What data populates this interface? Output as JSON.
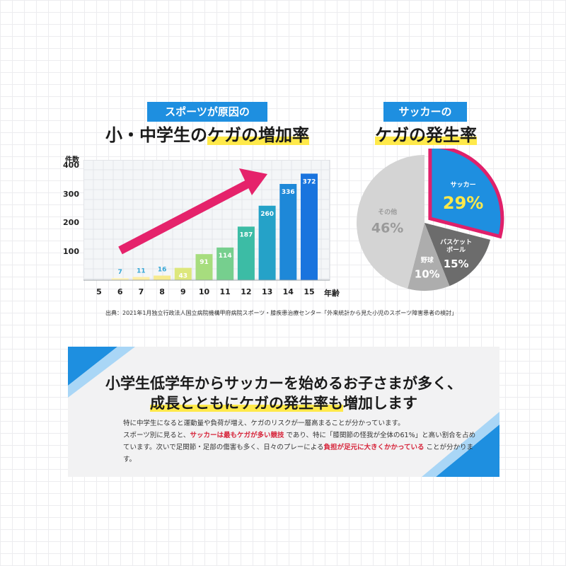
{
  "left_panel": {
    "tag": "スポーツが原因の",
    "title_plain_1": "小・中学生の",
    "title_highlight": "ケガの増加率",
    "y_unit": "件数",
    "x_unit": "年齢",
    "source": "出典：2021年1月独立行政法人国立病院機構甲府病院スポーツ・膝疾患治療センター「外来統計から見た小児のスポーツ障害患者の検討」"
  },
  "right_panel": {
    "tag": "サッカーの",
    "title_highlight": "ケガの発生率"
  },
  "chart_data": [
    {
      "type": "bar",
      "ylabel": "件数",
      "xlabel": "年齢",
      "ylim": [
        0,
        420
      ],
      "yticks": [
        100,
        200,
        300,
        400
      ],
      "categories": [
        "5",
        "6",
        "7",
        "8",
        "9",
        "10",
        "11",
        "12",
        "13",
        "14",
        "15"
      ],
      "values": [
        0,
        7,
        11,
        16,
        43,
        91,
        114,
        187,
        260,
        336,
        372
      ],
      "value_labels": [
        "",
        "7",
        "11",
        "16",
        "43",
        "91",
        "114",
        "187",
        "260",
        "336",
        "372"
      ],
      "grid": true,
      "annotation": "increasing-trend-arrow",
      "colors": [
        "#ffffff",
        "#fff3b8",
        "#fdeea4",
        "#f6ea8e",
        "#dde77c",
        "#a7dd7e",
        "#76cf8e",
        "#3cbca5",
        "#25a2c8",
        "#1e88d8",
        "#1a74de"
      ]
    },
    {
      "type": "pie",
      "slices": [
        {
          "label": "サッカー",
          "value": 29,
          "value_text": "29%",
          "color": "#1e8fe0",
          "highlight_border": "#e0206a"
        },
        {
          "label": "バスケット\nボール",
          "value": 15,
          "value_text": "15%",
          "color": "#6c6c6c"
        },
        {
          "label": "野球",
          "value": 10,
          "value_text": "10%",
          "color": "#adadad"
        },
        {
          "label": "その他",
          "value": 46,
          "value_text": "46%",
          "color": "#d4d4d4"
        }
      ]
    }
  ],
  "summary": {
    "title_line1": "小学生低学年からサッカーを始めるお子さまが多く、",
    "title_line2_highlight": "成長とともにケガの発生率も",
    "title_line2_rest": "増加します",
    "p1": "特に中学生になると運動量や負荷が増え、ケガのリスクが一層高まることが分かっています。",
    "p2_a": "スポーツ別に見ると、",
    "p2_red": "サッカーは最もケガが多い競技",
    "p2_b": "であり、特に「膝関節の怪我が全体の61%」と高い割合を占め",
    "p3_a": "ています。次いで足関節・足部の傷害も多く、日々のプレーによる",
    "p3_red": "負担が足元に大きくかかっている",
    "p3_b": "ことが分かりま",
    "p4": "す。"
  }
}
